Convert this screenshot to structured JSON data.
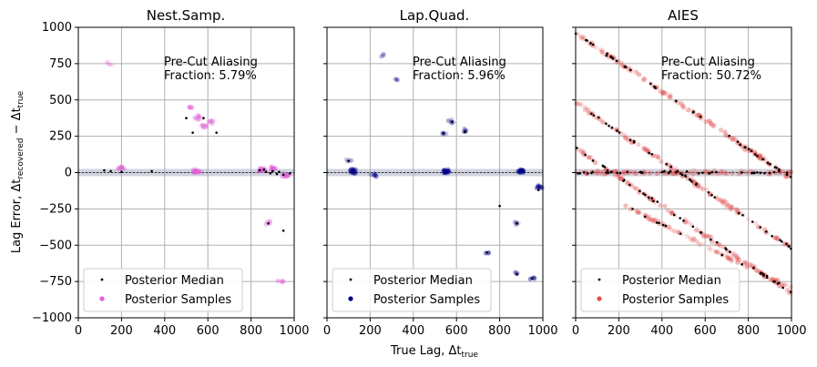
{
  "figure": {
    "ylabel": "Lag Error, Δt",
    "ylabel_sub": "recovered",
    "ylabel_mid": " − Δt",
    "ylabel_sub2": "true",
    "xlabel": "True Lag, Δt",
    "xlabel_sub": "true"
  },
  "chart_data": [
    {
      "type": "scatter",
      "title": "Nest.Samp.",
      "annotation_line1": "Pre-Cut Aliasing",
      "annotation_line2": "Fraction: 5.79%",
      "sample_color": "#e060d8",
      "median_color": "#000000",
      "xlim": [
        0,
        1000
      ],
      "ylim": [
        -1000,
        1000
      ],
      "xticks": [
        0,
        200,
        400,
        600,
        800,
        1000
      ],
      "yticks": [
        1000,
        750,
        500,
        250,
        0,
        -250,
        -500,
        -750,
        -1000
      ],
      "xtick_labels": [
        "0",
        "200",
        "400",
        "600",
        "800",
        "1000"
      ],
      "ytick_labels": [
        "1000",
        "750",
        "500",
        "250",
        "0",
        "−250",
        "−500",
        "−750",
        "−1000"
      ],
      "grid": true,
      "legend": [
        "Posterior Median",
        "Posterior Samples"
      ],
      "legend_position": "lower-left",
      "band": true,
      "band_x": [
        0,
        1000
      ],
      "medians": [
        [
          120,
          15
        ],
        [
          150,
          10
        ],
        [
          200,
          5
        ],
        [
          340,
          10
        ],
        [
          500,
          375
        ],
        [
          530,
          275
        ],
        [
          580,
          375
        ],
        [
          640,
          275
        ],
        [
          840,
          15
        ],
        [
          860,
          20
        ],
        [
          870,
          5
        ],
        [
          890,
          -5
        ],
        [
          900,
          10
        ],
        [
          920,
          -10
        ],
        [
          930,
          5
        ],
        [
          950,
          -15
        ],
        [
          880,
          -350
        ],
        [
          950,
          -400
        ],
        [
          980,
          -5
        ]
      ],
      "sample_clusters": [
        [
          520,
          450,
          10
        ],
        [
          560,
          380,
          12
        ],
        [
          580,
          320,
          10
        ],
        [
          620,
          350,
          10
        ],
        [
          550,
          10,
          25
        ],
        [
          850,
          20,
          25
        ],
        [
          900,
          30,
          20
        ],
        [
          960,
          -20,
          20
        ],
        [
          200,
          30,
          15
        ],
        [
          940,
          -750,
          6
        ],
        [
          880,
          -340,
          6
        ],
        [
          150,
          750,
          4
        ]
      ],
      "diagonals": []
    },
    {
      "type": "scatter",
      "title": "Lap.Quad.",
      "annotation_line1": "Pre-Cut Aliasing",
      "annotation_line2": "Fraction: 5.96%",
      "sample_color": "#00008b",
      "median_color": "#000000",
      "xlim": [
        0,
        1000
      ],
      "ylim": [
        -1000,
        1000
      ],
      "xticks": [
        0,
        200,
        400,
        600,
        800,
        1000
      ],
      "yticks": [
        1000,
        750,
        500,
        250,
        0,
        -250,
        -500,
        -750,
        -1000
      ],
      "xtick_labels": [
        "0",
        "200",
        "400",
        "600",
        "800",
        "1000"
      ],
      "ytick_labels": [
        "1000",
        "750",
        "500",
        "250",
        "0",
        "−250",
        "−500",
        "−750",
        "−1000"
      ],
      "grid": true,
      "legend": [
        "Posterior Median",
        "Posterior Samples"
      ],
      "legend_position": "lower-left",
      "band": true,
      "band_x": [
        0,
        1000
      ],
      "medians": [
        [
          100,
          80
        ],
        [
          540,
          270
        ],
        [
          580,
          350
        ],
        [
          640,
          280
        ],
        [
          800,
          -230
        ],
        [
          740,
          -550
        ],
        [
          880,
          -700
        ],
        [
          950,
          -730
        ],
        [
          880,
          -350
        ],
        [
          980,
          -120
        ]
      ],
      "sample_clusters": [
        [
          100,
          85,
          6
        ],
        [
          540,
          270,
          6
        ],
        [
          580,
          350,
          6
        ],
        [
          640,
          290,
          6
        ],
        [
          880,
          -350,
          6
        ],
        [
          880,
          -690,
          6
        ],
        [
          950,
          -730,
          6
        ],
        [
          740,
          -550,
          5
        ],
        [
          120,
          10,
          30
        ],
        [
          550,
          10,
          30
        ],
        [
          900,
          10,
          30
        ],
        [
          980,
          -100,
          15
        ],
        [
          220,
          -20,
          10
        ],
        [
          250,
          810,
          4
        ],
        [
          320,
          640,
          4
        ]
      ],
      "diagonals": []
    },
    {
      "type": "scatter",
      "title": "AIES",
      "annotation_line1": "Pre-Cut Aliasing",
      "annotation_line2": "Fraction: 50.72%",
      "sample_color": "#e05050",
      "median_color": "#000000",
      "xlim": [
        0,
        1000
      ],
      "ylim": [
        -1000,
        1000
      ],
      "xticks": [
        0,
        200,
        400,
        600,
        800,
        1000
      ],
      "yticks": [
        1000,
        750,
        500,
        250,
        0,
        -250,
        -500,
        -750,
        -1000
      ],
      "xtick_labels": [
        "0",
        "200",
        "400",
        "600",
        "800",
        "1000"
      ],
      "ytick_labels": [
        "1000",
        "750",
        "500",
        "250",
        "0",
        "−250",
        "−500",
        "−750",
        "−1000"
      ],
      "grid": true,
      "legend": [
        "Posterior Median",
        "Posterior Samples"
      ],
      "legend_position": "lower-left",
      "band": true,
      "band_x": [
        0,
        1000
      ],
      "medians": [],
      "sample_clusters": [],
      "diagonals": [
        {
          "x0": 0,
          "y0": 960,
          "x1": 1000,
          "y1": -40,
          "n_medians": 40,
          "n_samples": 160
        },
        {
          "x0": 0,
          "y0": 480,
          "x1": 1000,
          "y1": -520,
          "n_medians": 40,
          "n_samples": 130
        },
        {
          "x0": 0,
          "y0": 170,
          "x1": 1000,
          "y1": -830,
          "n_medians": 40,
          "n_samples": 120
        },
        {
          "x0": 0,
          "y0": 0,
          "x1": 1000,
          "y1": 0,
          "n_medians": 40,
          "n_samples": 120
        },
        {
          "x0": 230,
          "y0": -230,
          "x1": 1000,
          "y1": -800,
          "n_medians": 12,
          "n_samples": 80
        }
      ]
    }
  ]
}
